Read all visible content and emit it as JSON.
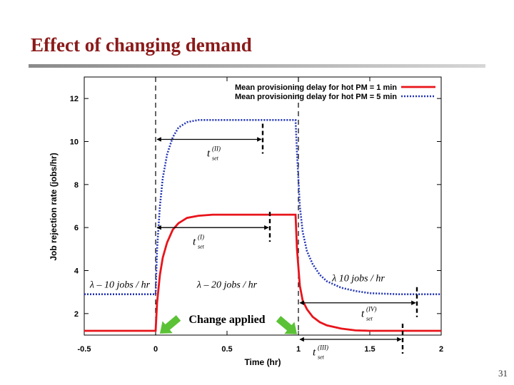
{
  "slide": {
    "title": "Effect of changing demand",
    "page_number": "31"
  },
  "chart_data": {
    "type": "line",
    "xlabel": "Time (hr)",
    "ylabel": "Job rejection rate (jobs/hr)",
    "xlim": [
      -0.5,
      2
    ],
    "ylim": [
      1,
      13
    ],
    "x_ticks": [
      "-0.5",
      "0",
      "0.5",
      "1",
      "1.5",
      "2"
    ],
    "y_ticks": [
      "2",
      "4",
      "6",
      "8",
      "10",
      "12"
    ],
    "legend_position": "top-right",
    "grid": false,
    "series": [
      {
        "name": "Mean provisioning delay for hot PM = 1 min",
        "color": "#e8141b",
        "style": "solid",
        "x": [
          -0.5,
          0,
          0.01,
          0.03,
          0.05,
          0.08,
          0.12,
          0.16,
          0.22,
          0.3,
          0.4,
          0.6,
          0.8,
          0.98,
          0.99,
          1.01,
          1.03,
          1.06,
          1.1,
          1.15,
          1.2,
          1.3,
          1.4,
          1.5,
          1.7,
          2
        ],
        "y": [
          1.2,
          1.2,
          2.5,
          3.8,
          4.6,
          5.3,
          5.9,
          6.2,
          6.45,
          6.55,
          6.6,
          6.6,
          6.6,
          6.6,
          5.0,
          3.3,
          2.6,
          2.2,
          1.85,
          1.6,
          1.45,
          1.3,
          1.22,
          1.2,
          1.2,
          1.2
        ]
      },
      {
        "name": "Mean provisioning delay for hot PM = 5 min",
        "color": "#2234b5",
        "style": "dotted",
        "x": [
          -0.5,
          0,
          0.01,
          0.03,
          0.05,
          0.08,
          0.12,
          0.16,
          0.22,
          0.3,
          0.4,
          0.6,
          0.8,
          0.98,
          0.99,
          1.01,
          1.03,
          1.06,
          1.1,
          1.15,
          1.2,
          1.3,
          1.4,
          1.5,
          1.7,
          2
        ],
        "y": [
          2.9,
          2.9,
          5.0,
          7.0,
          8.3,
          9.4,
          10.2,
          10.65,
          10.9,
          11.0,
          11.0,
          11.0,
          11.0,
          11.0,
          9.5,
          7.0,
          5.8,
          4.9,
          4.3,
          3.8,
          3.5,
          3.2,
          3.05,
          2.95,
          2.9,
          2.9
        ]
      }
    ],
    "phases": [
      {
        "label": "λ – 10 jobs / hr",
        "x": -0.25,
        "y": 3.2
      },
      {
        "label": "λ – 20 jobs / hr",
        "x": 0.5,
        "y": 3.2
      },
      {
        "label": "λ  10 jobs / hr",
        "x": 1.42,
        "y": 3.5
      }
    ],
    "change_points_x": [
      0,
      1
    ],
    "change_label": "Change applied",
    "settling": [
      {
        "sup": "(I)",
        "x1": 0,
        "x2": 0.8,
        "y": 6.0,
        "label_x": 0.26,
        "label_y": 5.2
      },
      {
        "sup": "(II)",
        "x1": 0,
        "x2": 0.75,
        "y": 10.1,
        "label_x": 0.36,
        "label_y": 9.3
      },
      {
        "sup": "(III)",
        "x1": 1,
        "x2": 1.73,
        "y": 0.8,
        "label_x": 1.1,
        "label_y": 0.05
      },
      {
        "sup": "(IV)",
        "x1": 1,
        "x2": 1.83,
        "y": 2.5,
        "label_x": 1.44,
        "label_y": 1.85
      }
    ],
    "settling_base": "t",
    "settling_sub": "set"
  }
}
